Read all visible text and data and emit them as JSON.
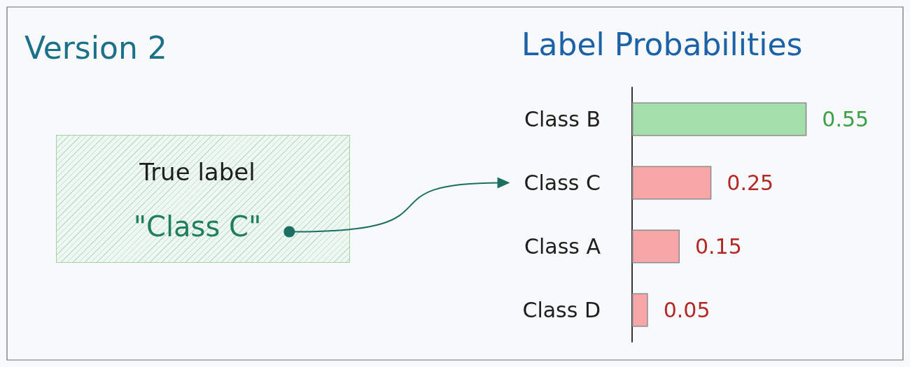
{
  "chart_data": {
    "type": "bar",
    "orientation": "horizontal",
    "title": "Label Probabilities",
    "categories": [
      "Class B",
      "Class C",
      "Class A",
      "Class D"
    ],
    "values": [
      0.55,
      0.25,
      0.15,
      0.05
    ],
    "colors": [
      "#a3deab",
      "#f7a7a7",
      "#f7a7a7",
      "#f7a7a7"
    ],
    "data_labels": true,
    "tick_labels": "y",
    "annotations": [
      "Version 2",
      "True label",
      "\"Class C\""
    ]
  }
}
